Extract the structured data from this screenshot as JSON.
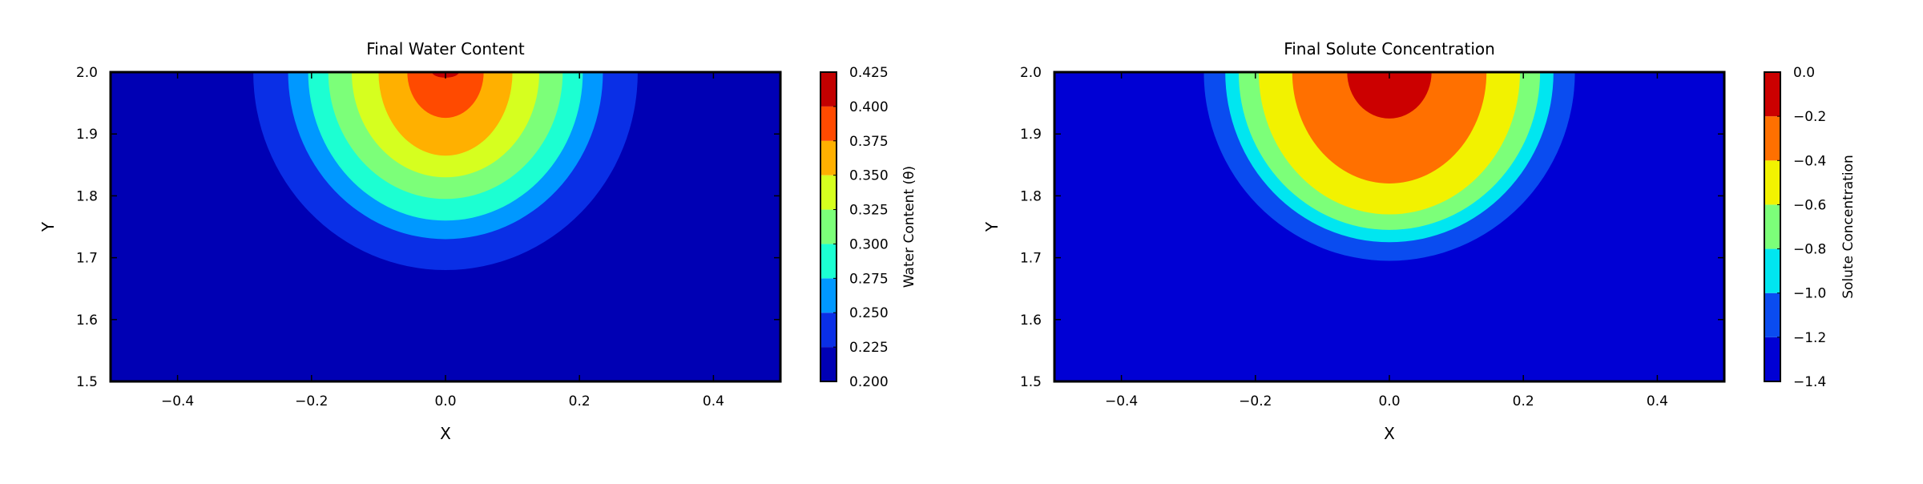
{
  "chart_data": [
    {
      "type": "heatmap",
      "subtype": "filled-contour",
      "title": "Final Water Content",
      "xlabel": "X",
      "ylabel": "Y",
      "xlim": [
        -0.5,
        0.5
      ],
      "ylim": [
        1.5,
        2.0
      ],
      "x_ticks": [
        "−0.4",
        "−0.2",
        "0.0",
        "0.2",
        "0.4"
      ],
      "x_tick_values": [
        -0.4,
        -0.2,
        0.0,
        0.2,
        0.4
      ],
      "y_ticks": [
        "1.5",
        "1.6",
        "1.7",
        "1.8",
        "1.9",
        "2.0"
      ],
      "y_tick_values": [
        1.5,
        1.6,
        1.7,
        1.8,
        1.9,
        2.0
      ],
      "colorbar": {
        "label": "Water Content (θ)",
        "tick_labels": [
          "0.200",
          "0.225",
          "0.250",
          "0.275",
          "0.300",
          "0.325",
          "0.350",
          "0.375",
          "0.400",
          "0.425"
        ],
        "levels": [
          0.2,
          0.225,
          0.25,
          0.275,
          0.3,
          0.325,
          0.35,
          0.375,
          0.4,
          0.425
        ],
        "colors": [
          "#0000b4",
          "#0a2fe6",
          "#0098ff",
          "#1cffd2",
          "#7cff79",
          "#d6ff1f",
          "#ffb000",
          "#ff4a00",
          "#c20000"
        ]
      },
      "source": {
        "x": 0.0,
        "y": 2.0
      },
      "contours": [
        {
          "level_index": 1,
          "semi_axis_x": 0.287,
          "semi_axis_y": 0.32
        },
        {
          "level_index": 2,
          "semi_axis_x": 0.235,
          "semi_axis_y": 0.27
        },
        {
          "level_index": 3,
          "semi_axis_x": 0.205,
          "semi_axis_y": 0.24
        },
        {
          "level_index": 4,
          "semi_axis_x": 0.175,
          "semi_axis_y": 0.205
        },
        {
          "level_index": 5,
          "semi_axis_x": 0.14,
          "semi_axis_y": 0.17
        },
        {
          "level_index": 6,
          "semi_axis_x": 0.1,
          "semi_axis_y": 0.135
        },
        {
          "level_index": 7,
          "semi_axis_x": 0.057,
          "semi_axis_y": 0.074
        },
        {
          "level_index": 8,
          "semi_axis_x": 0.02,
          "semi_axis_y": 0.009
        }
      ]
    },
    {
      "type": "heatmap",
      "subtype": "filled-contour",
      "title": "Final Solute Concentration",
      "xlabel": "X",
      "ylabel": "Y",
      "xlim": [
        -0.5,
        0.5
      ],
      "ylim": [
        1.5,
        2.0
      ],
      "x_ticks": [
        "−0.4",
        "−0.2",
        "0.0",
        "0.2",
        "0.4"
      ],
      "x_tick_values": [
        -0.4,
        -0.2,
        0.0,
        0.2,
        0.4
      ],
      "y_ticks": [
        "1.5",
        "1.6",
        "1.7",
        "1.8",
        "1.9",
        "2.0"
      ],
      "y_tick_values": [
        1.5,
        1.6,
        1.7,
        1.8,
        1.9,
        2.0
      ],
      "colorbar": {
        "label": "Solute Concentration",
        "tick_labels": [
          "−1.4",
          "−1.2",
          "−1.0",
          "−0.8",
          "−0.6",
          "−0.4",
          "−0.2",
          "0.0"
        ],
        "levels": [
          -1.4,
          -1.2,
          -1.0,
          -0.8,
          -0.6,
          -0.4,
          -0.2,
          0.0
        ],
        "colors": [
          "#0000d4",
          "#0a4cf0",
          "#00e6f0",
          "#7cff79",
          "#f2f200",
          "#ff7000",
          "#cc0000"
        ]
      },
      "source": {
        "x": 0.0,
        "y": 2.0
      },
      "contours": [
        {
          "level_index": 1,
          "semi_axis_x": 0.277,
          "semi_axis_y": 0.305
        },
        {
          "level_index": 2,
          "semi_axis_x": 0.245,
          "semi_axis_y": 0.275
        },
        {
          "level_index": 3,
          "semi_axis_x": 0.225,
          "semi_axis_y": 0.255
        },
        {
          "level_index": 4,
          "semi_axis_x": 0.195,
          "semi_axis_y": 0.23
        },
        {
          "level_index": 5,
          "semi_axis_x": 0.145,
          "semi_axis_y": 0.18
        },
        {
          "level_index": 6,
          "semi_axis_x": 0.063,
          "semi_axis_y": 0.075
        }
      ]
    }
  ]
}
